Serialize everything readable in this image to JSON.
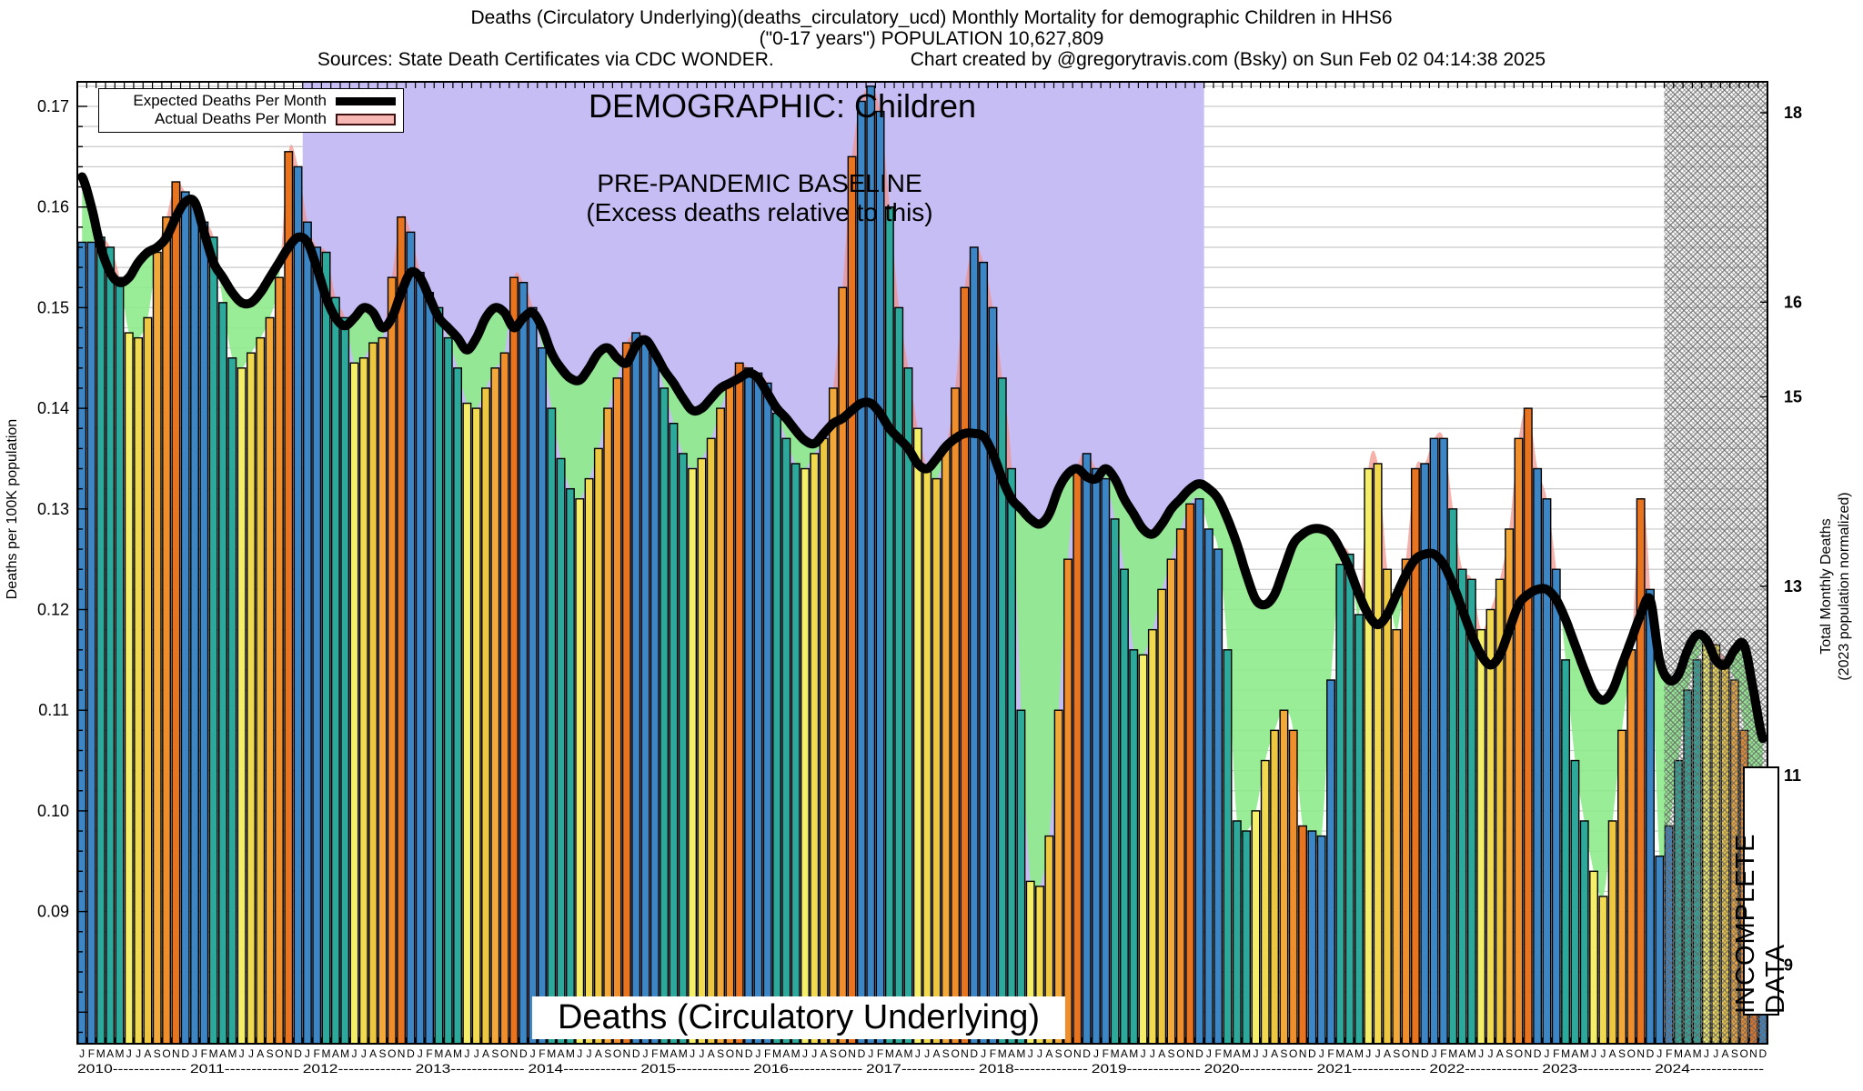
{
  "header": {
    "line1": "Deaths (Circulatory Underlying)(deaths_circulatory_ucd) Monthly Mortality for demographic Children in HHS6",
    "line2": "(\"0-17 years\") POPULATION 10,627,809",
    "line3_left": "Sources: State Death Certificates via CDC WONDER.",
    "line3_right": "Chart created by @gregorytravis.com (Bsky) on Sun Feb 02 04:14:38 2025"
  },
  "legend": {
    "expected_label": "Expected Deaths Per Month",
    "actual_label": "Actual Deaths Per Month"
  },
  "annotations": {
    "demographic": "DEMOGRAPHIC: Children",
    "baseline_line1": "PRE-PANDEMIC BASELINE",
    "baseline_line2": "(Excess deaths relative to this)",
    "bottom_label": "Deaths (Circulatory Underlying)",
    "incomplete": "INCOMPLETE DATA"
  },
  "y_axis_left": {
    "title": "Deaths per 100K population",
    "tick_labels": [
      "0.17",
      "0.16",
      "0.15",
      "0.14",
      "0.13",
      "0.12",
      "0.11",
      "0.10",
      "0.09"
    ],
    "tick_values": [
      0.17,
      0.16,
      0.15,
      0.14,
      0.13,
      0.12,
      0.11,
      0.1,
      0.09
    ]
  },
  "y_axis_right": {
    "title_line1": "Total Monthly Deaths",
    "title_line2": "(2023 population normalized)",
    "labels": [
      "18",
      "16",
      "15",
      "13",
      "11",
      "9"
    ],
    "values": [
      18,
      16,
      15,
      13,
      11,
      9
    ],
    "population_per_100k": 106.27809
  },
  "x_axis": {
    "month_letters": "JFMAMJJASOND",
    "years": [
      "2010",
      "2011",
      "2012",
      "2013",
      "2014",
      "2015",
      "2016",
      "2017",
      "2018",
      "2019",
      "2020",
      "2021",
      "2022",
      "2023",
      "2024"
    ]
  },
  "chart_data": {
    "type": "bar+line",
    "title": "Deaths (Circulatory Underlying) Monthly Mortality, Children HHS6",
    "ylabel": "Deaths per 100K population",
    "ylim": [
      0.0768,
      0.1724
    ],
    "x_start": "2010-01",
    "x_end": "2024-12",
    "baseline_region": {
      "from_month_index": 24,
      "to_month_index": 120,
      "color": "#c5bdf4"
    },
    "incomplete_region": {
      "from_month_index": 169,
      "color_note": "gray crosshatch"
    },
    "colors": {
      "expected_line": "#000000",
      "excess_fill": "#f29086",
      "deficit_fill": "#8deb8b",
      "grid": "#c9c9c9",
      "month_colors_jan_to_dec": [
        "#3c86c6",
        "#3c86c6",
        "#2da99b",
        "#2da99b",
        "#2da99b",
        "#f4ee68",
        "#f1da50",
        "#eec741",
        "#f2a93a",
        "#ef8e2b",
        "#e97420",
        "#3c86c6"
      ]
    },
    "series": [
      {
        "name": "Expected Deaths Per Month",
        "values": [
          0.163,
          0.16,
          0.156,
          0.1535,
          0.1525,
          0.153,
          0.1545,
          0.1555,
          0.156,
          0.157,
          0.159,
          0.1605,
          0.1605,
          0.1575,
          0.1545,
          0.153,
          0.1515,
          0.1505,
          0.1505,
          0.1515,
          0.153,
          0.1545,
          0.156,
          0.157,
          0.1565,
          0.154,
          0.151,
          0.149,
          0.1482,
          0.149,
          0.15,
          0.1495,
          0.148,
          0.149,
          0.1515,
          0.1535,
          0.153,
          0.151,
          0.149,
          0.148,
          0.147,
          0.1458,
          0.147,
          0.149,
          0.15,
          0.1495,
          0.148,
          0.149,
          0.1495,
          0.148,
          0.1455,
          0.144,
          0.143,
          0.1428,
          0.144,
          0.1455,
          0.146,
          0.145,
          0.1445,
          0.1462,
          0.1468,
          0.1455,
          0.1438,
          0.1425,
          0.141,
          0.1398,
          0.14,
          0.141,
          0.142,
          0.1425,
          0.143,
          0.1435,
          0.143,
          0.1415,
          0.14,
          0.139,
          0.1378,
          0.1368,
          0.1365,
          0.1375,
          0.1385,
          0.139,
          0.1398,
          0.1405,
          0.1405,
          0.1395,
          0.138,
          0.137,
          0.136,
          0.1345,
          0.134,
          0.135,
          0.1362,
          0.137,
          0.1375,
          0.1375,
          0.1372,
          0.1355,
          0.133,
          0.131,
          0.13,
          0.129,
          0.1285,
          0.1295,
          0.132,
          0.1335,
          0.134,
          0.1332,
          0.133,
          0.134,
          0.133,
          0.131,
          0.1295,
          0.128,
          0.1275,
          0.1285,
          0.13,
          0.131,
          0.132,
          0.1325,
          0.132,
          0.131,
          0.129,
          0.1265,
          0.1235,
          0.121,
          0.1205,
          0.1215,
          0.124,
          0.1265,
          0.1275,
          0.128,
          0.128,
          0.1275,
          0.126,
          0.124,
          0.1215,
          0.1195,
          0.1185,
          0.1195,
          0.1215,
          0.1235,
          0.125,
          0.1255,
          0.1255,
          0.1245,
          0.1225,
          0.12,
          0.1175,
          0.1155,
          0.1145,
          0.1155,
          0.118,
          0.1205,
          0.1215,
          0.122,
          0.122,
          0.121,
          0.119,
          0.1165,
          0.114,
          0.1118,
          0.111,
          0.112,
          0.1145,
          0.117,
          0.1195,
          0.121,
          0.115,
          0.113,
          0.1135,
          0.116,
          0.1175,
          0.117,
          0.115,
          0.1145,
          0.116,
          0.1165,
          0.112,
          0.1072
        ]
      },
      {
        "name": "Actual Deaths Per Month",
        "values": [
          0.1565,
          0.1565,
          0.157,
          0.156,
          0.153,
          0.1475,
          0.147,
          0.149,
          0.1555,
          0.159,
          0.1625,
          0.1615,
          0.1605,
          0.1585,
          0.157,
          0.1505,
          0.145,
          0.144,
          0.1455,
          0.147,
          0.149,
          0.153,
          0.1655,
          0.164,
          0.1585,
          0.156,
          0.1555,
          0.151,
          0.149,
          0.1445,
          0.145,
          0.1465,
          0.147,
          0.153,
          0.159,
          0.1575,
          0.1535,
          0.1515,
          0.15,
          0.147,
          0.144,
          0.1405,
          0.14,
          0.142,
          0.144,
          0.1455,
          0.153,
          0.1525,
          0.15,
          0.146,
          0.14,
          0.135,
          0.132,
          0.131,
          0.133,
          0.136,
          0.14,
          0.143,
          0.1465,
          0.1475,
          0.147,
          0.1455,
          0.142,
          0.1385,
          0.1355,
          0.134,
          0.135,
          0.137,
          0.14,
          0.1425,
          0.1445,
          0.144,
          0.1435,
          0.1425,
          0.1395,
          0.137,
          0.1345,
          0.134,
          0.1355,
          0.137,
          0.142,
          0.152,
          0.165,
          0.1705,
          0.172,
          0.1695,
          0.16,
          0.15,
          0.144,
          0.138,
          0.134,
          0.133,
          0.136,
          0.142,
          0.152,
          0.156,
          0.1545,
          0.15,
          0.143,
          0.134,
          0.11,
          0.093,
          0.0925,
          0.0975,
          0.11,
          0.125,
          0.134,
          0.1355,
          0.134,
          0.133,
          0.129,
          0.124,
          0.116,
          0.1155,
          0.118,
          0.122,
          0.125,
          0.128,
          0.1305,
          0.131,
          0.128,
          0.126,
          0.116,
          0.099,
          0.098,
          0.1,
          0.105,
          0.108,
          0.11,
          0.108,
          0.0985,
          0.098,
          0.0975,
          0.113,
          0.1245,
          0.1255,
          0.1195,
          0.134,
          0.1345,
          0.124,
          0.118,
          0.125,
          0.134,
          0.1345,
          0.137,
          0.137,
          0.13,
          0.124,
          0.123,
          0.118,
          0.12,
          0.123,
          0.128,
          0.137,
          0.14,
          0.134,
          0.131,
          0.124,
          0.115,
          0.105,
          0.099,
          0.094,
          0.0915,
          0.099,
          0.108,
          0.116,
          0.131,
          0.122,
          0.0955,
          0.0985,
          0.105,
          0.112,
          0.115,
          0.117,
          0.1165,
          0.115,
          0.113,
          0.108,
          0.0965,
          0.088
        ]
      }
    ]
  }
}
